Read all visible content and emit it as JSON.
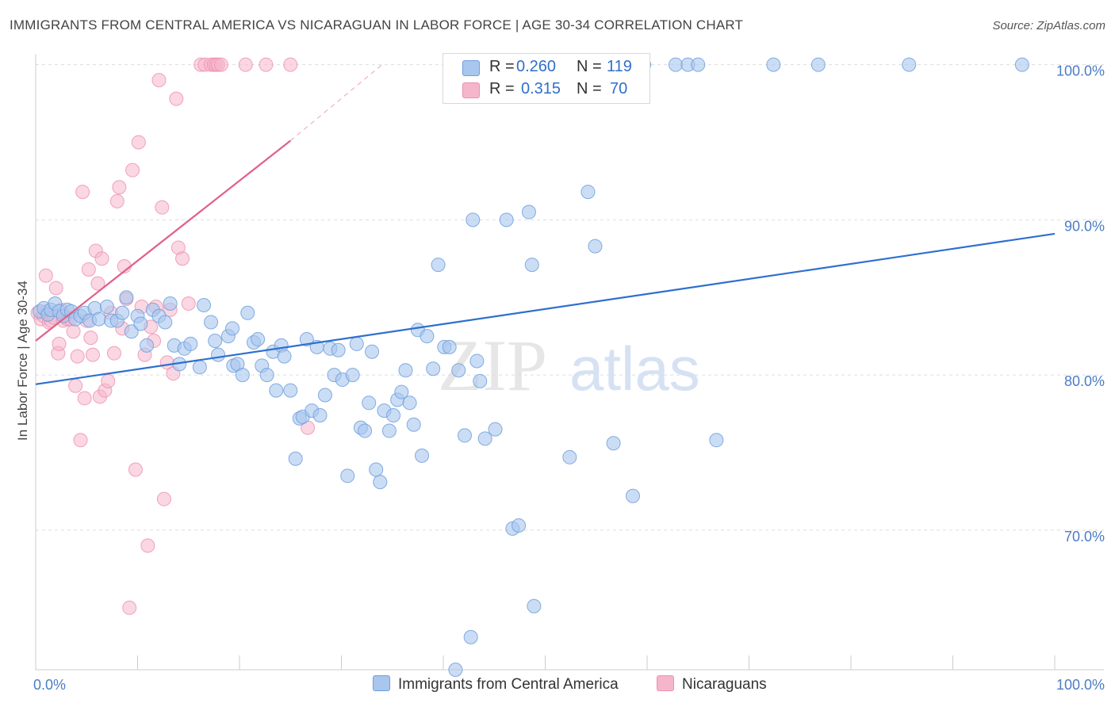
{
  "title": "IMMIGRANTS FROM CENTRAL AMERICA VS NICARAGUAN IN LABOR FORCE | AGE 30-34 CORRELATION CHART",
  "source": "Source: ZipAtlas.com",
  "legend": {
    "rows": [
      {
        "r_label": "R =",
        "r_value": "0.260",
        "n_label": "N =",
        "n_value": "119"
      },
      {
        "r_label": "R =",
        "r_value": "0.315",
        "n_label": "N =",
        "n_value": "70"
      }
    ]
  },
  "watermark": {
    "zip": "ZIP",
    "atlas": "atlas"
  },
  "colors": {
    "blue_fill": "#a9c6ee",
    "blue_stroke": "#6f9fdc",
    "blue_line": "#2e6fcf",
    "pink_fill": "#f5b6cb",
    "pink_stroke": "#ec8fae",
    "pink_line": "#e0608a",
    "grid": "#dddddd",
    "axis_text": "#4a7cc7"
  },
  "chart_data": {
    "type": "scatter",
    "title": "IMMIGRANTS FROM CENTRAL AMERICA VS NICARAGUAN IN LABOR FORCE | AGE 30-34 CORRELATION CHART",
    "xlabel": "",
    "ylabel": "In Labor Force | Age 30-34",
    "xlim": [
      0,
      100
    ],
    "ylim": [
      61,
      101
    ],
    "x_tick_labels": [
      "0.0%",
      "100.0%"
    ],
    "y_ticks": [
      70,
      80,
      90,
      100
    ],
    "y_tick_labels": [
      "70.0%",
      "80.0%",
      "90.0%",
      "100.0%"
    ],
    "grid": true,
    "legend_position": "top-center",
    "series": [
      {
        "name": "Immigrants from Central America",
        "color": "#a9c6ee",
        "R": 0.26,
        "N": 119,
        "trend": {
          "x": [
            0,
            100
          ],
          "y": [
            79.4,
            89.1
          ]
        },
        "points": [
          [
            0.4,
            84.1
          ],
          [
            0.8,
            84.3
          ],
          [
            1.2,
            83.9
          ],
          [
            1.5,
            84.2
          ],
          [
            1.9,
            84.6
          ],
          [
            2.3,
            84.1
          ],
          [
            2.7,
            83.8
          ],
          [
            3.1,
            84.2
          ],
          [
            3.5,
            84.1
          ],
          [
            3.9,
            83.6
          ],
          [
            4.4,
            83.8
          ],
          [
            4.8,
            84.0
          ],
          [
            5.3,
            83.5
          ],
          [
            5.8,
            84.3
          ],
          [
            6.2,
            83.6
          ],
          [
            7.0,
            84.4
          ],
          [
            7.4,
            83.5
          ],
          [
            8.0,
            83.5
          ],
          [
            8.5,
            84.0
          ],
          [
            8.9,
            85.0
          ],
          [
            9.4,
            82.8
          ],
          [
            10.0,
            83.8
          ],
          [
            10.3,
            83.3
          ],
          [
            10.9,
            81.9
          ],
          [
            11.5,
            84.2
          ],
          [
            12.1,
            83.8
          ],
          [
            12.7,
            83.4
          ],
          [
            13.2,
            84.6
          ],
          [
            13.6,
            81.9
          ],
          [
            14.1,
            80.7
          ],
          [
            14.6,
            81.7
          ],
          [
            15.2,
            82.0
          ],
          [
            16.1,
            80.5
          ],
          [
            16.5,
            84.5
          ],
          [
            17.2,
            83.4
          ],
          [
            17.6,
            82.2
          ],
          [
            17.9,
            81.3
          ],
          [
            18.9,
            82.5
          ],
          [
            19.3,
            83.0
          ],
          [
            19.4,
            80.6
          ],
          [
            19.8,
            80.7
          ],
          [
            20.3,
            80.0
          ],
          [
            20.8,
            84.0
          ],
          [
            21.4,
            82.1
          ],
          [
            21.8,
            82.3
          ],
          [
            22.2,
            80.6
          ],
          [
            22.7,
            80.0
          ],
          [
            23.3,
            81.5
          ],
          [
            23.6,
            79.0
          ],
          [
            24.1,
            81.9
          ],
          [
            24.4,
            81.2
          ],
          [
            25.0,
            79.0
          ],
          [
            25.5,
            74.6
          ],
          [
            25.9,
            77.2
          ],
          [
            26.2,
            77.3
          ],
          [
            26.6,
            82.3
          ],
          [
            27.1,
            77.7
          ],
          [
            27.6,
            81.8
          ],
          [
            27.9,
            77.4
          ],
          [
            28.4,
            78.7
          ],
          [
            28.9,
            81.7
          ],
          [
            29.3,
            80.0
          ],
          [
            29.7,
            81.6
          ],
          [
            30.1,
            79.7
          ],
          [
            30.6,
            73.5
          ],
          [
            31.1,
            80.0
          ],
          [
            31.5,
            82.0
          ],
          [
            31.9,
            76.6
          ],
          [
            32.3,
            76.4
          ],
          [
            32.7,
            78.2
          ],
          [
            33.0,
            81.5
          ],
          [
            33.4,
            73.9
          ],
          [
            33.8,
            73.1
          ],
          [
            34.2,
            77.7
          ],
          [
            34.7,
            76.4
          ],
          [
            35.1,
            77.4
          ],
          [
            35.5,
            78.4
          ],
          [
            35.9,
            78.9
          ],
          [
            36.3,
            80.3
          ],
          [
            36.7,
            78.2
          ],
          [
            37.1,
            76.8
          ],
          [
            37.5,
            82.9
          ],
          [
            37.9,
            74.8
          ],
          [
            38.4,
            82.5
          ],
          [
            39.0,
            80.4
          ],
          [
            39.5,
            87.1
          ],
          [
            40.1,
            81.8
          ],
          [
            40.6,
            81.8
          ],
          [
            41.2,
            61.0
          ],
          [
            41.5,
            80.3
          ],
          [
            42.1,
            76.1
          ],
          [
            42.7,
            63.1
          ],
          [
            42.9,
            90.0
          ],
          [
            43.3,
            80.9
          ],
          [
            43.6,
            79.6
          ],
          [
            44.1,
            75.9
          ],
          [
            45.1,
            76.5
          ],
          [
            46.2,
            90.0
          ],
          [
            46.8,
            70.1
          ],
          [
            47.4,
            70.3
          ],
          [
            48.4,
            90.5
          ],
          [
            48.7,
            87.1
          ],
          [
            48.9,
            65.1
          ],
          [
            52.4,
            74.7
          ],
          [
            54.2,
            91.8
          ],
          [
            54.9,
            88.3
          ],
          [
            56.7,
            75.6
          ],
          [
            58.6,
            72.2
          ],
          [
            59.7,
            100
          ],
          [
            62.8,
            100
          ],
          [
            64.0,
            100
          ],
          [
            65.0,
            100
          ],
          [
            66.8,
            75.8
          ],
          [
            72.4,
            100
          ],
          [
            76.8,
            100
          ],
          [
            85.7,
            100
          ],
          [
            96.8,
            100
          ]
        ]
      },
      {
        "name": "Nicaraguans",
        "color": "#f5b6cb",
        "R": 0.315,
        "N": 70,
        "trend": {
          "x": [
            0,
            25
          ],
          "y": [
            82.2,
            95.1
          ]
        },
        "trend_dashed": {
          "x": [
            25,
            34
          ],
          "y": [
            95.1,
            100
          ]
        },
        "points": [
          [
            0.2,
            84.0
          ],
          [
            0.5,
            83.6
          ],
          [
            0.8,
            83.8
          ],
          [
            1.0,
            86.4
          ],
          [
            1.1,
            84.1
          ],
          [
            1.3,
            83.4
          ],
          [
            1.5,
            83.5
          ],
          [
            1.8,
            83.7
          ],
          [
            2.0,
            85.6
          ],
          [
            2.2,
            81.4
          ],
          [
            2.3,
            82.0
          ],
          [
            2.5,
            84.2
          ],
          [
            2.7,
            83.5
          ],
          [
            2.9,
            83.8
          ],
          [
            3.1,
            83.6
          ],
          [
            3.4,
            83.6
          ],
          [
            3.7,
            82.8
          ],
          [
            3.9,
            79.3
          ],
          [
            4.1,
            81.2
          ],
          [
            4.4,
            75.8
          ],
          [
            4.6,
            91.8
          ],
          [
            4.8,
            78.5
          ],
          [
            5.0,
            83.5
          ],
          [
            5.2,
            86.8
          ],
          [
            5.4,
            82.4
          ],
          [
            5.6,
            81.3
          ],
          [
            5.9,
            88.0
          ],
          [
            6.1,
            85.9
          ],
          [
            6.3,
            78.6
          ],
          [
            6.5,
            87.5
          ],
          [
            6.8,
            79.0
          ],
          [
            7.1,
            79.6
          ],
          [
            7.4,
            84.0
          ],
          [
            7.7,
            81.4
          ],
          [
            8.0,
            91.2
          ],
          [
            8.2,
            92.1
          ],
          [
            8.5,
            83.0
          ],
          [
            8.7,
            87.0
          ],
          [
            8.9,
            84.9
          ],
          [
            9.2,
            65.0
          ],
          [
            9.5,
            93.2
          ],
          [
            9.8,
            73.9
          ],
          [
            10.1,
            95.0
          ],
          [
            10.4,
            84.4
          ],
          [
            10.7,
            81.3
          ],
          [
            11.0,
            69.0
          ],
          [
            11.3,
            83.1
          ],
          [
            11.6,
            82.2
          ],
          [
            11.8,
            84.4
          ],
          [
            12.1,
            99.0
          ],
          [
            12.4,
            90.8
          ],
          [
            12.6,
            72.0
          ],
          [
            12.9,
            80.8
          ],
          [
            13.2,
            84.2
          ],
          [
            13.5,
            80.1
          ],
          [
            13.8,
            97.8
          ],
          [
            14.0,
            88.2
          ],
          [
            14.4,
            87.5
          ],
          [
            15.0,
            84.6
          ],
          [
            16.2,
            100
          ],
          [
            16.6,
            100
          ],
          [
            17.2,
            100
          ],
          [
            17.5,
            100
          ],
          [
            17.7,
            100
          ],
          [
            17.9,
            100
          ],
          [
            18.2,
            100
          ],
          [
            20.6,
            100
          ],
          [
            22.6,
            100
          ],
          [
            25.0,
            100
          ],
          [
            26.7,
            76.6
          ]
        ]
      }
    ]
  },
  "bottom_legend": [
    {
      "label": "Immigrants from Central America"
    },
    {
      "label": "Nicaraguans"
    }
  ]
}
